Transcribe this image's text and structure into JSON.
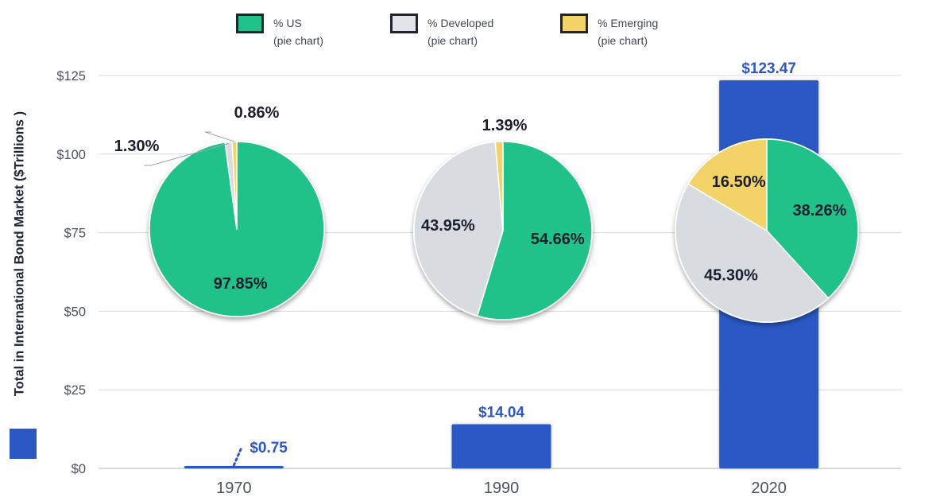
{
  "legend": [
    {
      "key": "us",
      "line1": "% US",
      "line2": "(pie chart)",
      "color": "#21c28a"
    },
    {
      "key": "developed",
      "line1": "% Developed",
      "line2": "(pie chart)",
      "color": "#e2e4ea"
    },
    {
      "key": "emerging",
      "line1": "% Emerging",
      "line2": "(pie chart)",
      "color": "#f3d268"
    }
  ],
  "colors": {
    "bar": "#2c58c4",
    "us": "#21c28a",
    "developed": "#d8dbe0",
    "emerging": "#f3d268",
    "grid": "#d9d9d9",
    "tick_text": "#4a5263",
    "pie_label": "#1a1f2e"
  },
  "chart_data": {
    "type": "bar",
    "title": "",
    "xlabel": "",
    "ylabel": "Total in International Bond Market ($Trillions )",
    "ylim": [
      0,
      125
    ],
    "yticks": [
      0,
      25,
      50,
      75,
      100,
      125
    ],
    "ytick_labels": [
      "$0",
      "$25",
      "$50",
      "$75",
      "$100",
      "$125"
    ],
    "grid": true,
    "categories": [
      "1970",
      "1990",
      "2020"
    ],
    "values": [
      0.75,
      14.04,
      123.47
    ],
    "value_labels": [
      "$0.75",
      "$14.04",
      "$123.47"
    ],
    "pies": [
      {
        "category": "1970",
        "slices": [
          {
            "name": "% US",
            "key": "us",
            "value": 97.85,
            "label": "97.85%"
          },
          {
            "name": "% Developed",
            "key": "developed",
            "value": 1.3,
            "label": "1.30%"
          },
          {
            "name": "% Emerging",
            "key": "emerging",
            "value": 0.86,
            "label": "0.86%"
          }
        ]
      },
      {
        "category": "1990",
        "slices": [
          {
            "name": "% US",
            "key": "us",
            "value": 54.66,
            "label": "54.66%"
          },
          {
            "name": "% Developed",
            "key": "developed",
            "value": 43.95,
            "label": "43.95%"
          },
          {
            "name": "% Emerging",
            "key": "emerging",
            "value": 1.39,
            "label": "1.39%"
          }
        ]
      },
      {
        "category": "2020",
        "slices": [
          {
            "name": "% US",
            "key": "us",
            "value": 38.26,
            "label": "38.26%"
          },
          {
            "name": "% Developed",
            "key": "developed",
            "value": 45.3,
            "label": "45.30%"
          },
          {
            "name": "% Emerging",
            "key": "emerging",
            "value": 16.5,
            "label": "16.50%"
          }
        ]
      }
    ],
    "legend": [
      "% US (pie chart)",
      "% Developed (pie chart)",
      "% Emerging (pie chart)",
      "Total in International Bond Market ($Trillions )"
    ],
    "legend_position": "top"
  }
}
